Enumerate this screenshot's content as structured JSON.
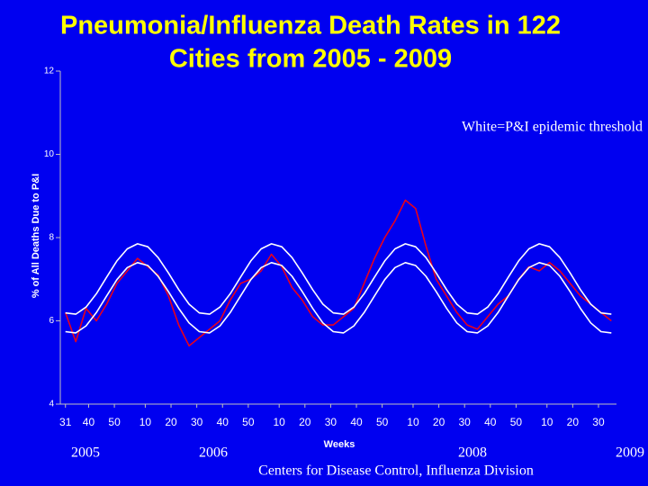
{
  "chart_data": {
    "type": "line",
    "title": [
      "Pneumonia/Influenza Death Rates in 122",
      "Cities from 2005 - 2009"
    ],
    "annotation": "White=P&I epidemic threshold",
    "y_label": "% of All Deaths Due to P&I",
    "x_label": "Weeks",
    "years": [
      "2005",
      "2006",
      "2008",
      "2009"
    ],
    "source": "Centers for Disease Control, Influenza Division",
    "xlim": [
      -2,
      214
    ],
    "ylim": [
      4,
      12
    ],
    "yticks": [
      4,
      6,
      8,
      10,
      12
    ],
    "xticks": [
      {
        "value": 0,
        "label": "31"
      },
      {
        "value": 9,
        "label": "40"
      },
      {
        "value": 19,
        "label": "50"
      },
      {
        "value": 31,
        "label": "10"
      },
      {
        "value": 41,
        "label": "20"
      },
      {
        "value": 51,
        "label": "30"
      },
      {
        "value": 61,
        "label": "40"
      },
      {
        "value": 71,
        "label": "50"
      },
      {
        "value": 83,
        "label": "10"
      },
      {
        "value": 93,
        "label": "20"
      },
      {
        "value": 103,
        "label": "30"
      },
      {
        "value": 113,
        "label": "40"
      },
      {
        "value": 123,
        "label": "50"
      },
      {
        "value": 135,
        "label": "10"
      },
      {
        "value": 145,
        "label": "20"
      },
      {
        "value": 155,
        "label": "30"
      },
      {
        "value": 165,
        "label": "40"
      },
      {
        "value": 175,
        "label": "50"
      },
      {
        "value": 187,
        "label": "10"
      },
      {
        "value": 197,
        "label": "20"
      },
      {
        "value": 207,
        "label": "30"
      }
    ],
    "x": [
      0,
      4,
      8,
      12,
      16,
      20,
      24,
      28,
      32,
      36,
      40,
      44,
      48,
      52,
      56,
      60,
      64,
      68,
      72,
      76,
      80,
      84,
      88,
      92,
      96,
      100,
      104,
      108,
      112,
      116,
      120,
      124,
      128,
      132,
      136,
      140,
      144,
      148,
      152,
      156,
      160,
      164,
      168,
      172,
      176,
      180,
      184,
      188,
      192,
      196,
      200,
      204,
      208,
      212
    ],
    "series": [
      {
        "color": "#e8001c",
        "width": 1.6,
        "values": [
          6.2,
          5.5,
          6.3,
          6.0,
          6.4,
          6.9,
          7.2,
          7.5,
          7.3,
          7.1,
          6.6,
          5.9,
          5.4,
          5.6,
          5.8,
          6.0,
          6.5,
          6.9,
          7.0,
          7.2,
          7.6,
          7.3,
          6.8,
          6.5,
          6.1,
          5.9,
          5.9,
          6.1,
          6.3,
          6.9,
          7.5,
          8.0,
          8.4,
          8.9,
          8.7,
          7.8,
          7.0,
          6.6,
          6.2,
          5.9,
          5.8,
          6.1,
          6.4,
          6.6,
          7.0,
          7.3,
          7.2,
          7.4,
          7.2,
          6.9,
          6.6,
          6.4,
          6.2,
          6.0
        ]
      },
      {
        "color": "#ffffff",
        "width": 1.6,
        "values": [
          6.19,
          6.16,
          6.33,
          6.65,
          7.05,
          7.44,
          7.73,
          7.85,
          7.78,
          7.52,
          7.15,
          6.75,
          6.4,
          6.19,
          6.16,
          6.33,
          6.65,
          7.05,
          7.44,
          7.73,
          7.85,
          7.78,
          7.52,
          7.15,
          6.75,
          6.4,
          6.19,
          6.16,
          6.33,
          6.65,
          7.05,
          7.44,
          7.73,
          7.85,
          7.78,
          7.52,
          7.15,
          6.75,
          6.4,
          6.19,
          6.16,
          6.33,
          6.65,
          7.05,
          7.44,
          7.73,
          7.85,
          7.78,
          7.52,
          7.15,
          6.75,
          6.4,
          6.19,
          6.16
        ]
      },
      {
        "color": "#ffffff",
        "width": 1.6,
        "values": [
          5.74,
          5.71,
          5.88,
          6.2,
          6.6,
          6.99,
          7.28,
          7.4,
          7.33,
          7.07,
          6.7,
          6.3,
          5.95,
          5.74,
          5.71,
          5.88,
          6.2,
          6.6,
          6.99,
          7.28,
          7.4,
          7.33,
          7.07,
          6.7,
          6.3,
          5.95,
          5.74,
          5.71,
          5.88,
          6.2,
          6.6,
          6.99,
          7.28,
          7.4,
          7.33,
          7.07,
          6.7,
          6.3,
          5.95,
          5.74,
          5.71,
          5.88,
          6.2,
          6.6,
          6.99,
          7.28,
          7.4,
          7.33,
          7.07,
          6.7,
          6.3,
          5.95,
          5.74,
          5.71
        ]
      }
    ]
  }
}
